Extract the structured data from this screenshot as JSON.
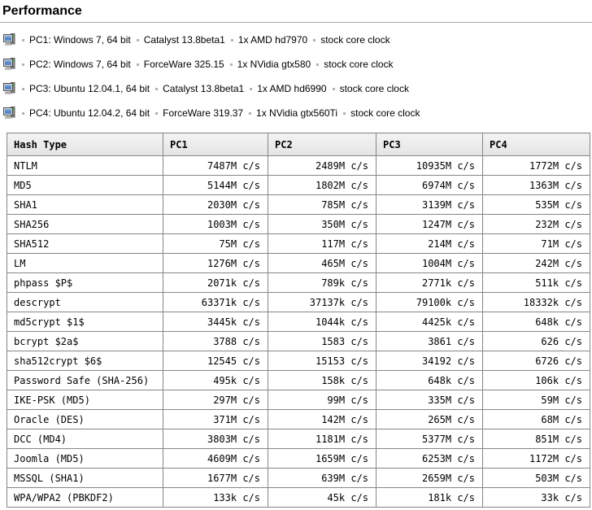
{
  "page": {
    "title": "Performance"
  },
  "machines": [
    {
      "segments": [
        "PC1: Windows 7, 64 bit",
        "Catalyst 13.8beta1",
        "1x AMD hd7970",
        "stock core clock"
      ]
    },
    {
      "segments": [
        "PC2: Windows 7, 64 bit",
        "ForceWare 325.15",
        "1x NVidia gtx580",
        "stock core clock"
      ]
    },
    {
      "segments": [
        "PC3: Ubuntu 12.04.1, 64 bit",
        "Catalyst 13.8beta1",
        "1x AMD hd6990",
        "stock core clock"
      ]
    },
    {
      "segments": [
        "PC4: Ubuntu 12.04.2, 64 bit",
        "ForceWare 319.37",
        "1x NVidia gtx560Ti",
        "stock core clock"
      ]
    }
  ],
  "table": {
    "columns": [
      "Hash Type",
      "PC1",
      "PC2",
      "PC3",
      "PC4"
    ],
    "rows": [
      {
        "hash": "NTLM",
        "values": [
          "7487M c/s",
          "2489M c/s",
          "10935M c/s",
          "1772M c/s"
        ]
      },
      {
        "hash": "MD5",
        "values": [
          "5144M c/s",
          "1802M c/s",
          "6974M c/s",
          "1363M c/s"
        ]
      },
      {
        "hash": "SHA1",
        "values": [
          "2030M c/s",
          "785M c/s",
          "3139M c/s",
          "535M c/s"
        ]
      },
      {
        "hash": "SHA256",
        "values": [
          "1003M c/s",
          "350M c/s",
          "1247M c/s",
          "232M c/s"
        ]
      },
      {
        "hash": "SHA512",
        "values": [
          "75M c/s",
          "117M c/s",
          "214M c/s",
          "71M c/s"
        ]
      },
      {
        "hash": "LM",
        "values": [
          "1276M c/s",
          "465M c/s",
          "1004M c/s",
          "242M c/s"
        ]
      },
      {
        "hash": "phpass $P$",
        "values": [
          "2071k c/s",
          "789k c/s",
          "2771k c/s",
          "511k c/s"
        ]
      },
      {
        "hash": "descrypt",
        "values": [
          "63371k c/s",
          "37137k c/s",
          "79100k c/s",
          "18332k c/s"
        ]
      },
      {
        "hash": "md5crypt $1$",
        "values": [
          "3445k c/s",
          "1044k c/s",
          "4425k c/s",
          "648k c/s"
        ]
      },
      {
        "hash": "bcrypt $2a$",
        "values": [
          "3788 c/s",
          "1583 c/s",
          "3861 c/s",
          "626 c/s"
        ]
      },
      {
        "hash": "sha512crypt $6$",
        "values": [
          "12545 c/s",
          "15153 c/s",
          "34192 c/s",
          "6726 c/s"
        ]
      },
      {
        "hash": "Password Safe (SHA-256)",
        "values": [
          "495k c/s",
          "158k c/s",
          "648k c/s",
          "106k c/s"
        ]
      },
      {
        "hash": "IKE-PSK (MD5)",
        "values": [
          "297M c/s",
          "99M c/s",
          "335M c/s",
          "59M c/s"
        ]
      },
      {
        "hash": "Oracle (DES)",
        "values": [
          "371M c/s",
          "142M c/s",
          "265M c/s",
          "68M c/s"
        ]
      },
      {
        "hash": "DCC (MD4)",
        "values": [
          "3803M c/s",
          "1181M c/s",
          "5377M c/s",
          "851M c/s"
        ]
      },
      {
        "hash": "Joomla (MD5)",
        "values": [
          "4609M c/s",
          "1659M c/s",
          "6253M c/s",
          "1172M c/s"
        ]
      },
      {
        "hash": "MSSQL (SHA1)",
        "values": [
          "1677M c/s",
          "639M c/s",
          "2659M c/s",
          "503M c/s"
        ]
      },
      {
        "hash": "WPA/WPA2 (PBKDF2)",
        "values": [
          "133k c/s",
          "45k c/s",
          "181k c/s",
          "33k c/s"
        ]
      }
    ]
  },
  "icons": {
    "machine": "workstation-icon"
  },
  "colors": {
    "table_border": "#868686",
    "header_bg_top": "#f3f3f3",
    "header_bg_bottom": "#e4e4e4",
    "title_rule": "#a7a7a7",
    "separator_dot": "#b2b2b2",
    "icon_screen_blue": "#5b87c5",
    "icon_led_green": "#3fae49"
  }
}
